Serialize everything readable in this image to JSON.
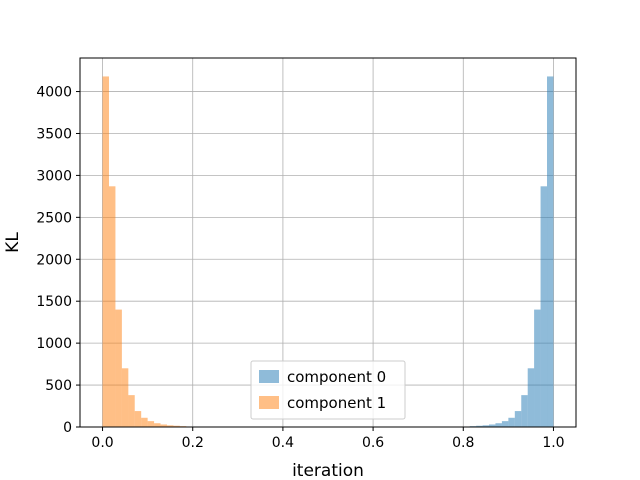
{
  "chart_data": {
    "type": "bar",
    "xlabel": "iteration",
    "ylabel": "KL",
    "xlim": [
      -0.05,
      1.05
    ],
    "ylim": [
      0,
      4400
    ],
    "xticks": [
      0.0,
      0.2,
      0.4,
      0.6,
      0.8,
      1.0
    ],
    "xtick_labels": [
      "0.0",
      "0.2",
      "0.4",
      "0.6",
      "0.8",
      "1.0"
    ],
    "yticks": [
      0,
      500,
      1000,
      1500,
      2000,
      2500,
      3000,
      3500,
      4000
    ],
    "ytick_labels": [
      "0",
      "500",
      "1000",
      "1500",
      "2000",
      "2500",
      "3000",
      "3500",
      "4000"
    ],
    "grid": true,
    "legend_position": "bottom-center",
    "bin_width": 0.01429,
    "series": [
      {
        "name": "component 0",
        "color": "#1f77b4",
        "bin_left": [
          0.8,
          0.8143,
          0.8286,
          0.8429,
          0.8571,
          0.8714,
          0.8857,
          0.9,
          0.9143,
          0.9286,
          0.9429,
          0.9571,
          0.9714,
          0.9857
        ],
        "values": [
          5,
          10,
          15,
          20,
          30,
          45,
          70,
          110,
          190,
          380,
          700,
          1400,
          2870,
          4180
        ]
      },
      {
        "name": "component 1",
        "color": "#ff7f0e",
        "bin_left": [
          0.0,
          0.0143,
          0.0286,
          0.0429,
          0.0571,
          0.0714,
          0.0857,
          0.1,
          0.1143,
          0.1286,
          0.1429,
          0.1571,
          0.1714,
          0.1857
        ],
        "values": [
          4180,
          2870,
          1400,
          700,
          380,
          190,
          110,
          70,
          45,
          30,
          20,
          15,
          10,
          5
        ]
      }
    ]
  }
}
